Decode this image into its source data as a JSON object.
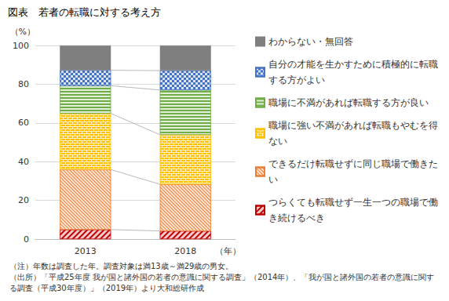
{
  "chart_data": {
    "type": "bar",
    "title": "図表　若者の転職に対する考え方",
    "y_label": "（%）",
    "x_label": "（年）",
    "categories": [
      "2013",
      "2018"
    ],
    "stacked": true,
    "series": [
      {
        "name": "つらくても転職せず一生一つの職場で働き続けるべき",
        "color": "#c00000",
        "values": [
          4.9,
          4.2
        ]
      },
      {
        "name": "できるだけ転職せずに同じ職場で働きたい",
        "color": "#ed7d31",
        "values": [
          31.0,
          24.1
        ]
      },
      {
        "name": "職場に強い不満があれば転職もやむを得ない",
        "color": "#ffc000",
        "values": [
          29.0,
          25.6
        ]
      },
      {
        "name": "職場に不満があれば転職する方が良い",
        "color": "#70ad47",
        "values": [
          14.3,
          23.1
        ]
      },
      {
        "name": "自分の才能を生かすために積極的に転職する方がよい",
        "color": "#4472c4",
        "values": [
          8.0,
          10.0
        ]
      },
      {
        "name": "わからない・無回答",
        "color": "#7f7f7f",
        "values": [
          12.8,
          13.0
        ]
      }
    ],
    "ylim": [
      0,
      100
    ],
    "yticks": [
      0,
      20,
      40,
      60,
      80,
      100
    ],
    "grid": true,
    "legend": "right",
    "notes": [
      "（注）年数は調査した年。調査対象は満13歳～満29歳の男女。",
      "（出所）「平成25年度 我が国と諸外国の若者の意識に関する調査」（2014年）、「我が国と諸外国の若者の意識に関する調査（平成30年度）」（2019年）より大和総研作成"
    ]
  }
}
